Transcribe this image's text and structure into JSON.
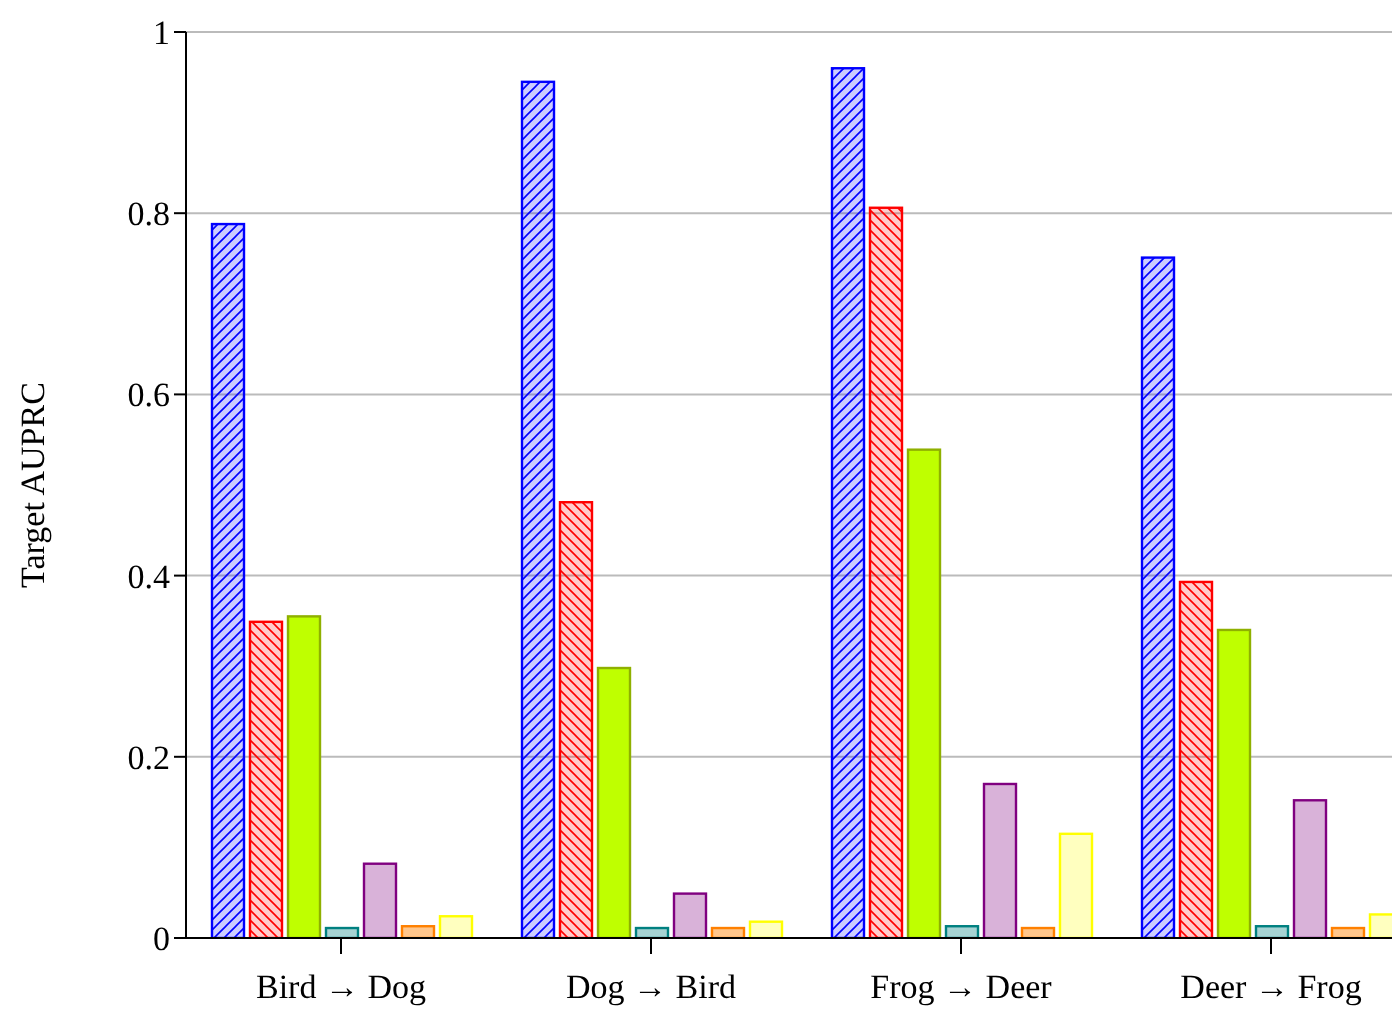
{
  "chart_data": {
    "type": "bar",
    "ylabel": "Target AUPRC",
    "categories": [
      "Bird → Dog",
      "Dog → Bird",
      "Frog → Deer",
      "Deer → Frog"
    ],
    "series": [
      {
        "color": "#0000ff",
        "values": [
          0.788,
          0.945,
          0.96,
          0.751
        ]
      },
      {
        "color": "#ff0000",
        "values": [
          0.349,
          0.481,
          0.806,
          0.393
        ]
      },
      {
        "color": "#bfff00",
        "values": [
          0.355,
          0.298,
          0.539,
          0.34
        ]
      },
      {
        "color": "#008080",
        "values": [
          0.011,
          0.011,
          0.013,
          0.013
        ]
      },
      {
        "color": "#800080",
        "values": [
          0.082,
          0.049,
          0.17,
          0.152
        ]
      },
      {
        "color": "#ff8000",
        "values": [
          0.013,
          0.011,
          0.011,
          0.011
        ]
      },
      {
        "color": "#ffff00",
        "values": [
          0.024,
          0.018,
          0.115,
          0.026
        ]
      }
    ],
    "ylim": [
      0,
      1
    ],
    "yticks": [
      0,
      0.2,
      0.4,
      0.6,
      0.8,
      1
    ],
    "grid": "y"
  }
}
